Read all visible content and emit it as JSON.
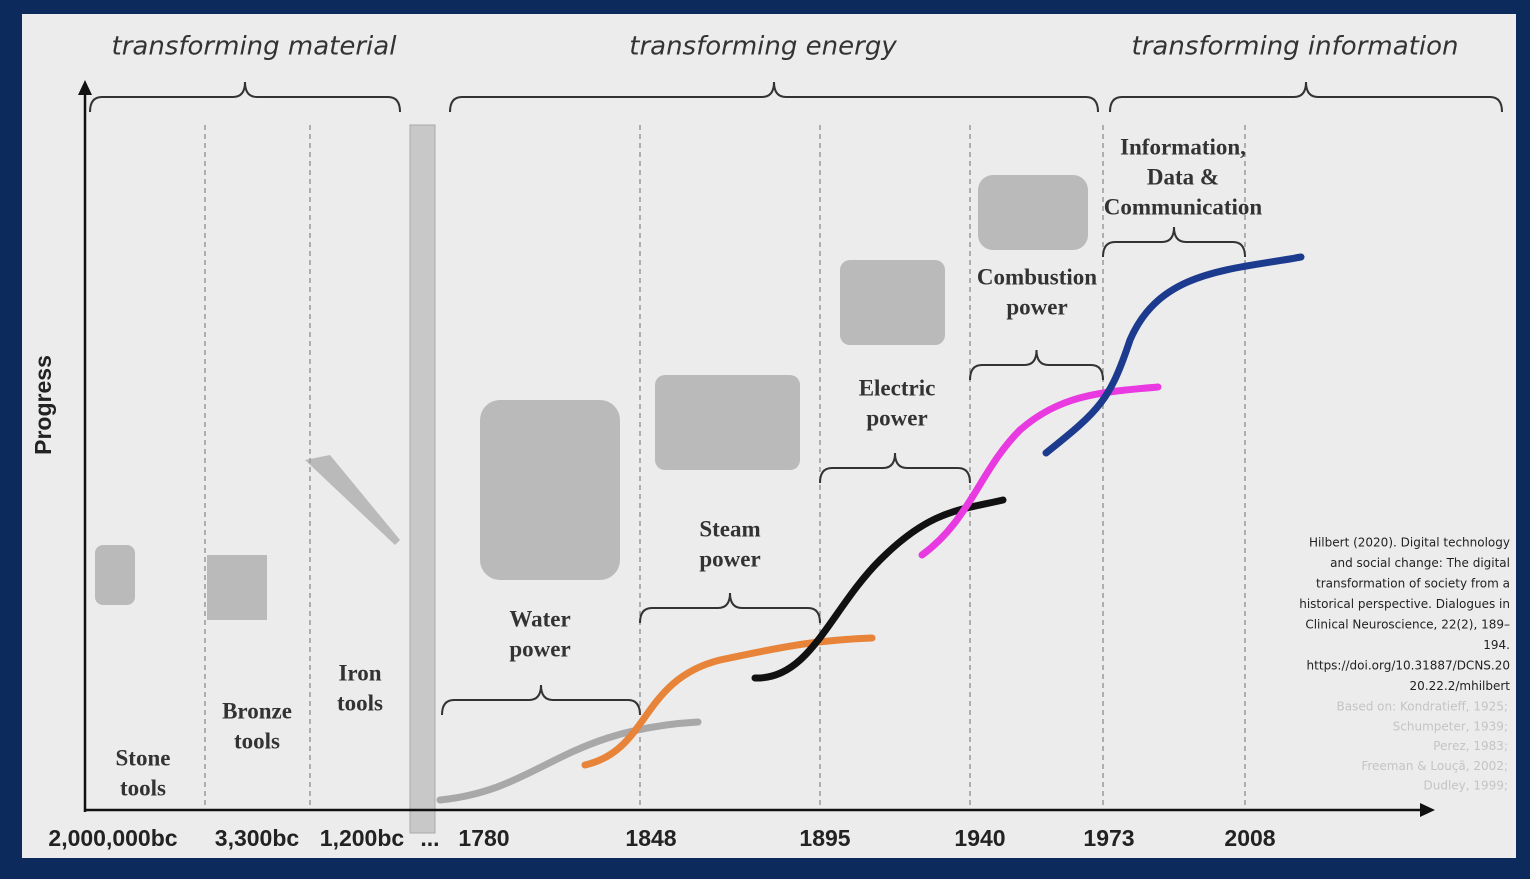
{
  "periods": [
    "transforming material",
    "transforming energy",
    "transforming information"
  ],
  "axis_label": "Progress",
  "x_labels": [
    "2,000,000bc",
    "3,300bc",
    "1,200bc",
    "...",
    "1780",
    "1848",
    "1895",
    "1940",
    "1973",
    "2008"
  ],
  "eras": [
    {
      "lines": [
        "Stone",
        "tools"
      ]
    },
    {
      "lines": [
        "Bronze",
        "tools"
      ]
    },
    {
      "lines": [
        "Iron",
        "tools"
      ]
    },
    {
      "lines": [
        "Water",
        "power"
      ]
    },
    {
      "lines": [
        "Steam",
        "power"
      ]
    },
    {
      "lines": [
        "Electric",
        "power"
      ]
    },
    {
      "lines": [
        "Combustion",
        "power"
      ]
    },
    {
      "lines": [
        "Information,",
        "Data &",
        "Communication"
      ]
    }
  ],
  "citation": [
    "Hilbert (2020). Digital technology",
    "and social change: The digital",
    "transformation of society from a",
    "historical perspective. Dialogues in",
    "Clinical Neuroscience, 22(2), 189–",
    "194.",
    "https://doi.org/10.31887/DCNS.20",
    "20.22.2/mhilbert"
  ],
  "based_on": [
    "Based on: Kondratieff, 1925;",
    "Schumpeter, 1939;",
    "Perez, 1983;",
    "Freeman & Louçã, 2002;",
    "Dudley, 1999;"
  ]
}
